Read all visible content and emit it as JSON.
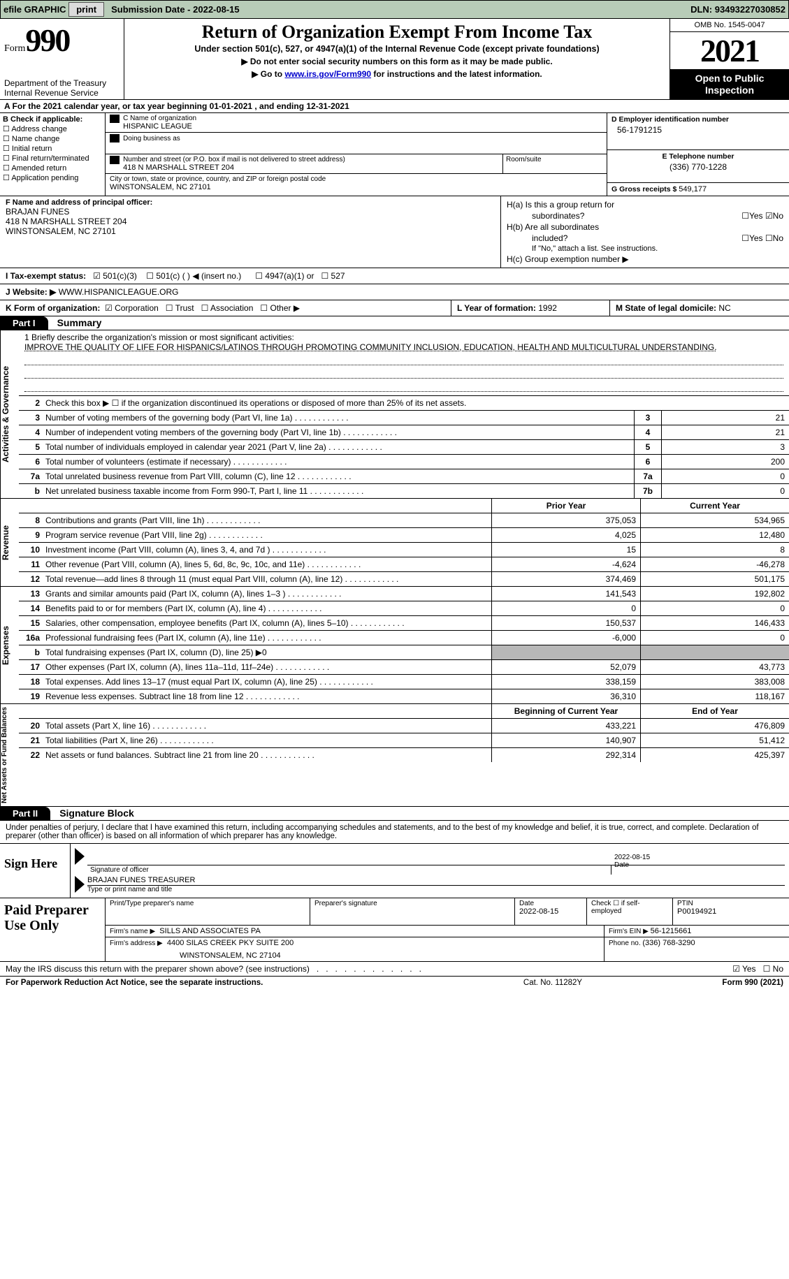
{
  "topbar": {
    "efile": "efile GRAPHIC",
    "print": "print",
    "subdate_label": "Submission Date - ",
    "subdate": "2022-08-15",
    "dln_label": "DLN: ",
    "dln": "93493227030852"
  },
  "header": {
    "form_word": "Form",
    "form_num": "990",
    "dept": "Department of the Treasury",
    "irs": "Internal Revenue Service",
    "title": "Return of Organization Exempt From Income Tax",
    "subtitle": "Under section 501(c), 527, or 4947(a)(1) of the Internal Revenue Code (except private foundations)",
    "note1": "▶ Do not enter social security numbers on this form as it may be made public.",
    "note2_pre": "▶ Go to ",
    "note2_link": "www.irs.gov/Form990",
    "note2_post": " for instructions and the latest information.",
    "omb": "OMB No. 1545-0047",
    "year": "2021",
    "open1": "Open to Public",
    "open2": "Inspection"
  },
  "rowA": "A For the 2021 calendar year, or tax year beginning 01-01-2021    , and ending 12-31-2021",
  "colB": {
    "title": "B Check if applicable:",
    "addr": "Address change",
    "name": "Name change",
    "init": "Initial return",
    "final": "Final return/terminated",
    "amend": "Amended return",
    "app": "Application pending"
  },
  "colC": {
    "name_label": "C Name of organization",
    "name": "HISPANIC LEAGUE",
    "dba_label": "Doing business as",
    "addr_label": "Number and street (or P.O. box if mail is not delivered to street address)",
    "addr": "418 N MARSHALL STREET 204",
    "room_label": "Room/suite",
    "city_label": "City or town, state or province, country, and ZIP or foreign postal code",
    "city": "WINSTONSALEM, NC  27101"
  },
  "colD": {
    "ein_label": "D Employer identification number",
    "ein": "56-1791215",
    "tel_label": "E Telephone number",
    "tel": "(336) 770-1228",
    "gross_label": "G Gross receipts $ ",
    "gross": "549,177"
  },
  "colF": {
    "label": "F Name and address of principal officer:",
    "name": "BRAJAN FUNES",
    "addr1": "418 N MARSHALL STREET 204",
    "addr2": "WINSTONSALEM, NC  27101"
  },
  "colH": {
    "ha_label": "H(a)  Is this a group return for",
    "ha_sub": "subordinates?",
    "hb_label": "H(b)  Are all subordinates",
    "hb_sub": "included?",
    "hb_note": "If \"No,\" attach a list. See instructions.",
    "hc_label": "H(c)  Group exemption number ▶",
    "yes": "Yes",
    "no": "No"
  },
  "rowI": {
    "label": "I    Tax-exempt status:",
    "c3": "501(c)(3)",
    "c": "501(c) (  ) ◀ (insert no.)",
    "a1": "4947(a)(1) or",
    "s527": "527"
  },
  "rowJ": {
    "label": "J   Website: ▶  ",
    "val": "WWW.HISPANICLEAGUE.ORG"
  },
  "rowK": {
    "label": "K Form of organization:",
    "corp": "Corporation",
    "trust": "Trust",
    "assoc": "Association",
    "other": "Other ▶"
  },
  "rowL": {
    "label": "L Year of formation: ",
    "val": "1992"
  },
  "rowM": {
    "label": "M State of legal domicile: ",
    "val": "NC"
  },
  "part1": {
    "num": "Part I",
    "title": "Summary"
  },
  "mission": {
    "label": "1   Briefly describe the organization's mission or most significant activities:",
    "text": "IMPROVE THE QUALITY OF LIFE FOR HISPANICS/LATINOS THROUGH PROMOTING COMMUNITY INCLUSION, EDUCATION, HEALTH AND MULTICULTURAL UNDERSTANDING."
  },
  "vtabs": {
    "ag": "Activities & Governance",
    "rev": "Revenue",
    "exp": "Expenses",
    "na": "Net Assets or\nFund Balances"
  },
  "lines_ag": [
    {
      "n": "2",
      "d": "Check this box ▶ ☐  if the organization discontinued its operations or disposed of more than 25% of its net assets."
    },
    {
      "n": "3",
      "d": "Number of voting members of the governing body (Part VI, line 1a)",
      "bn": "3",
      "v": "21"
    },
    {
      "n": "4",
      "d": "Number of independent voting members of the governing body (Part VI, line 1b)",
      "bn": "4",
      "v": "21"
    },
    {
      "n": "5",
      "d": "Total number of individuals employed in calendar year 2021 (Part V, line 2a)",
      "bn": "5",
      "v": "3"
    },
    {
      "n": "6",
      "d": "Total number of volunteers (estimate if necessary)",
      "bn": "6",
      "v": "200"
    },
    {
      "n": "7a",
      "d": "Total unrelated business revenue from Part VIII, column (C), line 12",
      "bn": "7a",
      "v": "0"
    },
    {
      "n": "b",
      "d": "Net unrelated business taxable income from Form 990-T, Part I, line 11",
      "bn": "7b",
      "v": "0"
    }
  ],
  "col_headers": {
    "prior": "Prior Year",
    "curr": "Current Year",
    "boy": "Beginning of Current Year",
    "eoy": "End of Year"
  },
  "lines_rev": [
    {
      "n": "8",
      "d": "Contributions and grants (Part VIII, line 1h)",
      "p": "375,053",
      "c": "534,965"
    },
    {
      "n": "9",
      "d": "Program service revenue (Part VIII, line 2g)",
      "p": "4,025",
      "c": "12,480"
    },
    {
      "n": "10",
      "d": "Investment income (Part VIII, column (A), lines 3, 4, and 7d )",
      "p": "15",
      "c": "8"
    },
    {
      "n": "11",
      "d": "Other revenue (Part VIII, column (A), lines 5, 6d, 8c, 9c, 10c, and 11e)",
      "p": "-4,624",
      "c": "-46,278"
    },
    {
      "n": "12",
      "d": "Total revenue—add lines 8 through 11 (must equal Part VIII, column (A), line 12)",
      "p": "374,469",
      "c": "501,175"
    }
  ],
  "lines_exp": [
    {
      "n": "13",
      "d": "Grants and similar amounts paid (Part IX, column (A), lines 1–3 )",
      "p": "141,543",
      "c": "192,802"
    },
    {
      "n": "14",
      "d": "Benefits paid to or for members (Part IX, column (A), line 4)",
      "p": "0",
      "c": "0"
    },
    {
      "n": "15",
      "d": "Salaries, other compensation, employee benefits (Part IX, column (A), lines 5–10)",
      "p": "150,537",
      "c": "146,433"
    },
    {
      "n": "16a",
      "d": "Professional fundraising fees (Part IX, column (A), line 11e)",
      "p": "-6,000",
      "c": "0"
    },
    {
      "n": "b",
      "d": "Total fundraising expenses (Part IX, column (D), line 25) ▶0",
      "gray": true
    },
    {
      "n": "17",
      "d": "Other expenses (Part IX, column (A), lines 11a–11d, 11f–24e)",
      "p": "52,079",
      "c": "43,773"
    },
    {
      "n": "18",
      "d": "Total expenses. Add lines 13–17 (must equal Part IX, column (A), line 25)",
      "p": "338,159",
      "c": "383,008"
    },
    {
      "n": "19",
      "d": "Revenue less expenses. Subtract line 18 from line 12",
      "p": "36,310",
      "c": "118,167"
    }
  ],
  "lines_na": [
    {
      "n": "20",
      "d": "Total assets (Part X, line 16)",
      "p": "433,221",
      "c": "476,809"
    },
    {
      "n": "21",
      "d": "Total liabilities (Part X, line 26)",
      "p": "140,907",
      "c": "51,412"
    },
    {
      "n": "22",
      "d": "Net assets or fund balances. Subtract line 21 from line 20",
      "p": "292,314",
      "c": "425,397"
    }
  ],
  "part2": {
    "num": "Part II",
    "title": "Signature Block"
  },
  "declare": "Under penalties of perjury, I declare that I have examined this return, including accompanying schedules and statements, and to the best of my knowledge and belief, it is true, correct, and complete. Declaration of preparer (other than officer) is based on all information of which preparer has any knowledge.",
  "sign": {
    "label": "Sign Here",
    "sig_of": "Signature of officer",
    "date": "Date",
    "date_val": "2022-08-15",
    "name": "BRAJAN FUNES TREASURER",
    "type": "Type or print name and title"
  },
  "prep": {
    "label": "Paid Preparer Use Only",
    "pname_label": "Print/Type preparer's name",
    "psig_label": "Preparer's signature",
    "pdate_label": "Date",
    "pdate": "2022-08-15",
    "chk_label": "Check ☐ if self-employed",
    "ptin_label": "PTIN",
    "ptin": "P00194921",
    "firm_label": "Firm's name    ▶",
    "firm": "SILLS AND ASSOCIATES PA",
    "ein_label": "Firm's EIN ▶ ",
    "ein": "56-1215661",
    "addr_label": "Firm's address ▶",
    "addr1": "4400 SILAS CREEK PKY SUITE 200",
    "addr2": "WINSTONSALEM, NC  27104",
    "phone_label": "Phone no. ",
    "phone": "(336) 768-3290"
  },
  "discuss": {
    "q": "May the IRS discuss this return with the preparer shown above? (see instructions)",
    "yes": "Yes",
    "no": "No"
  },
  "footer": {
    "pra": "For Paperwork Reduction Act Notice, see the separate instructions.",
    "cat": "Cat. No. 11282Y",
    "form": "Form 990 (2021)"
  }
}
